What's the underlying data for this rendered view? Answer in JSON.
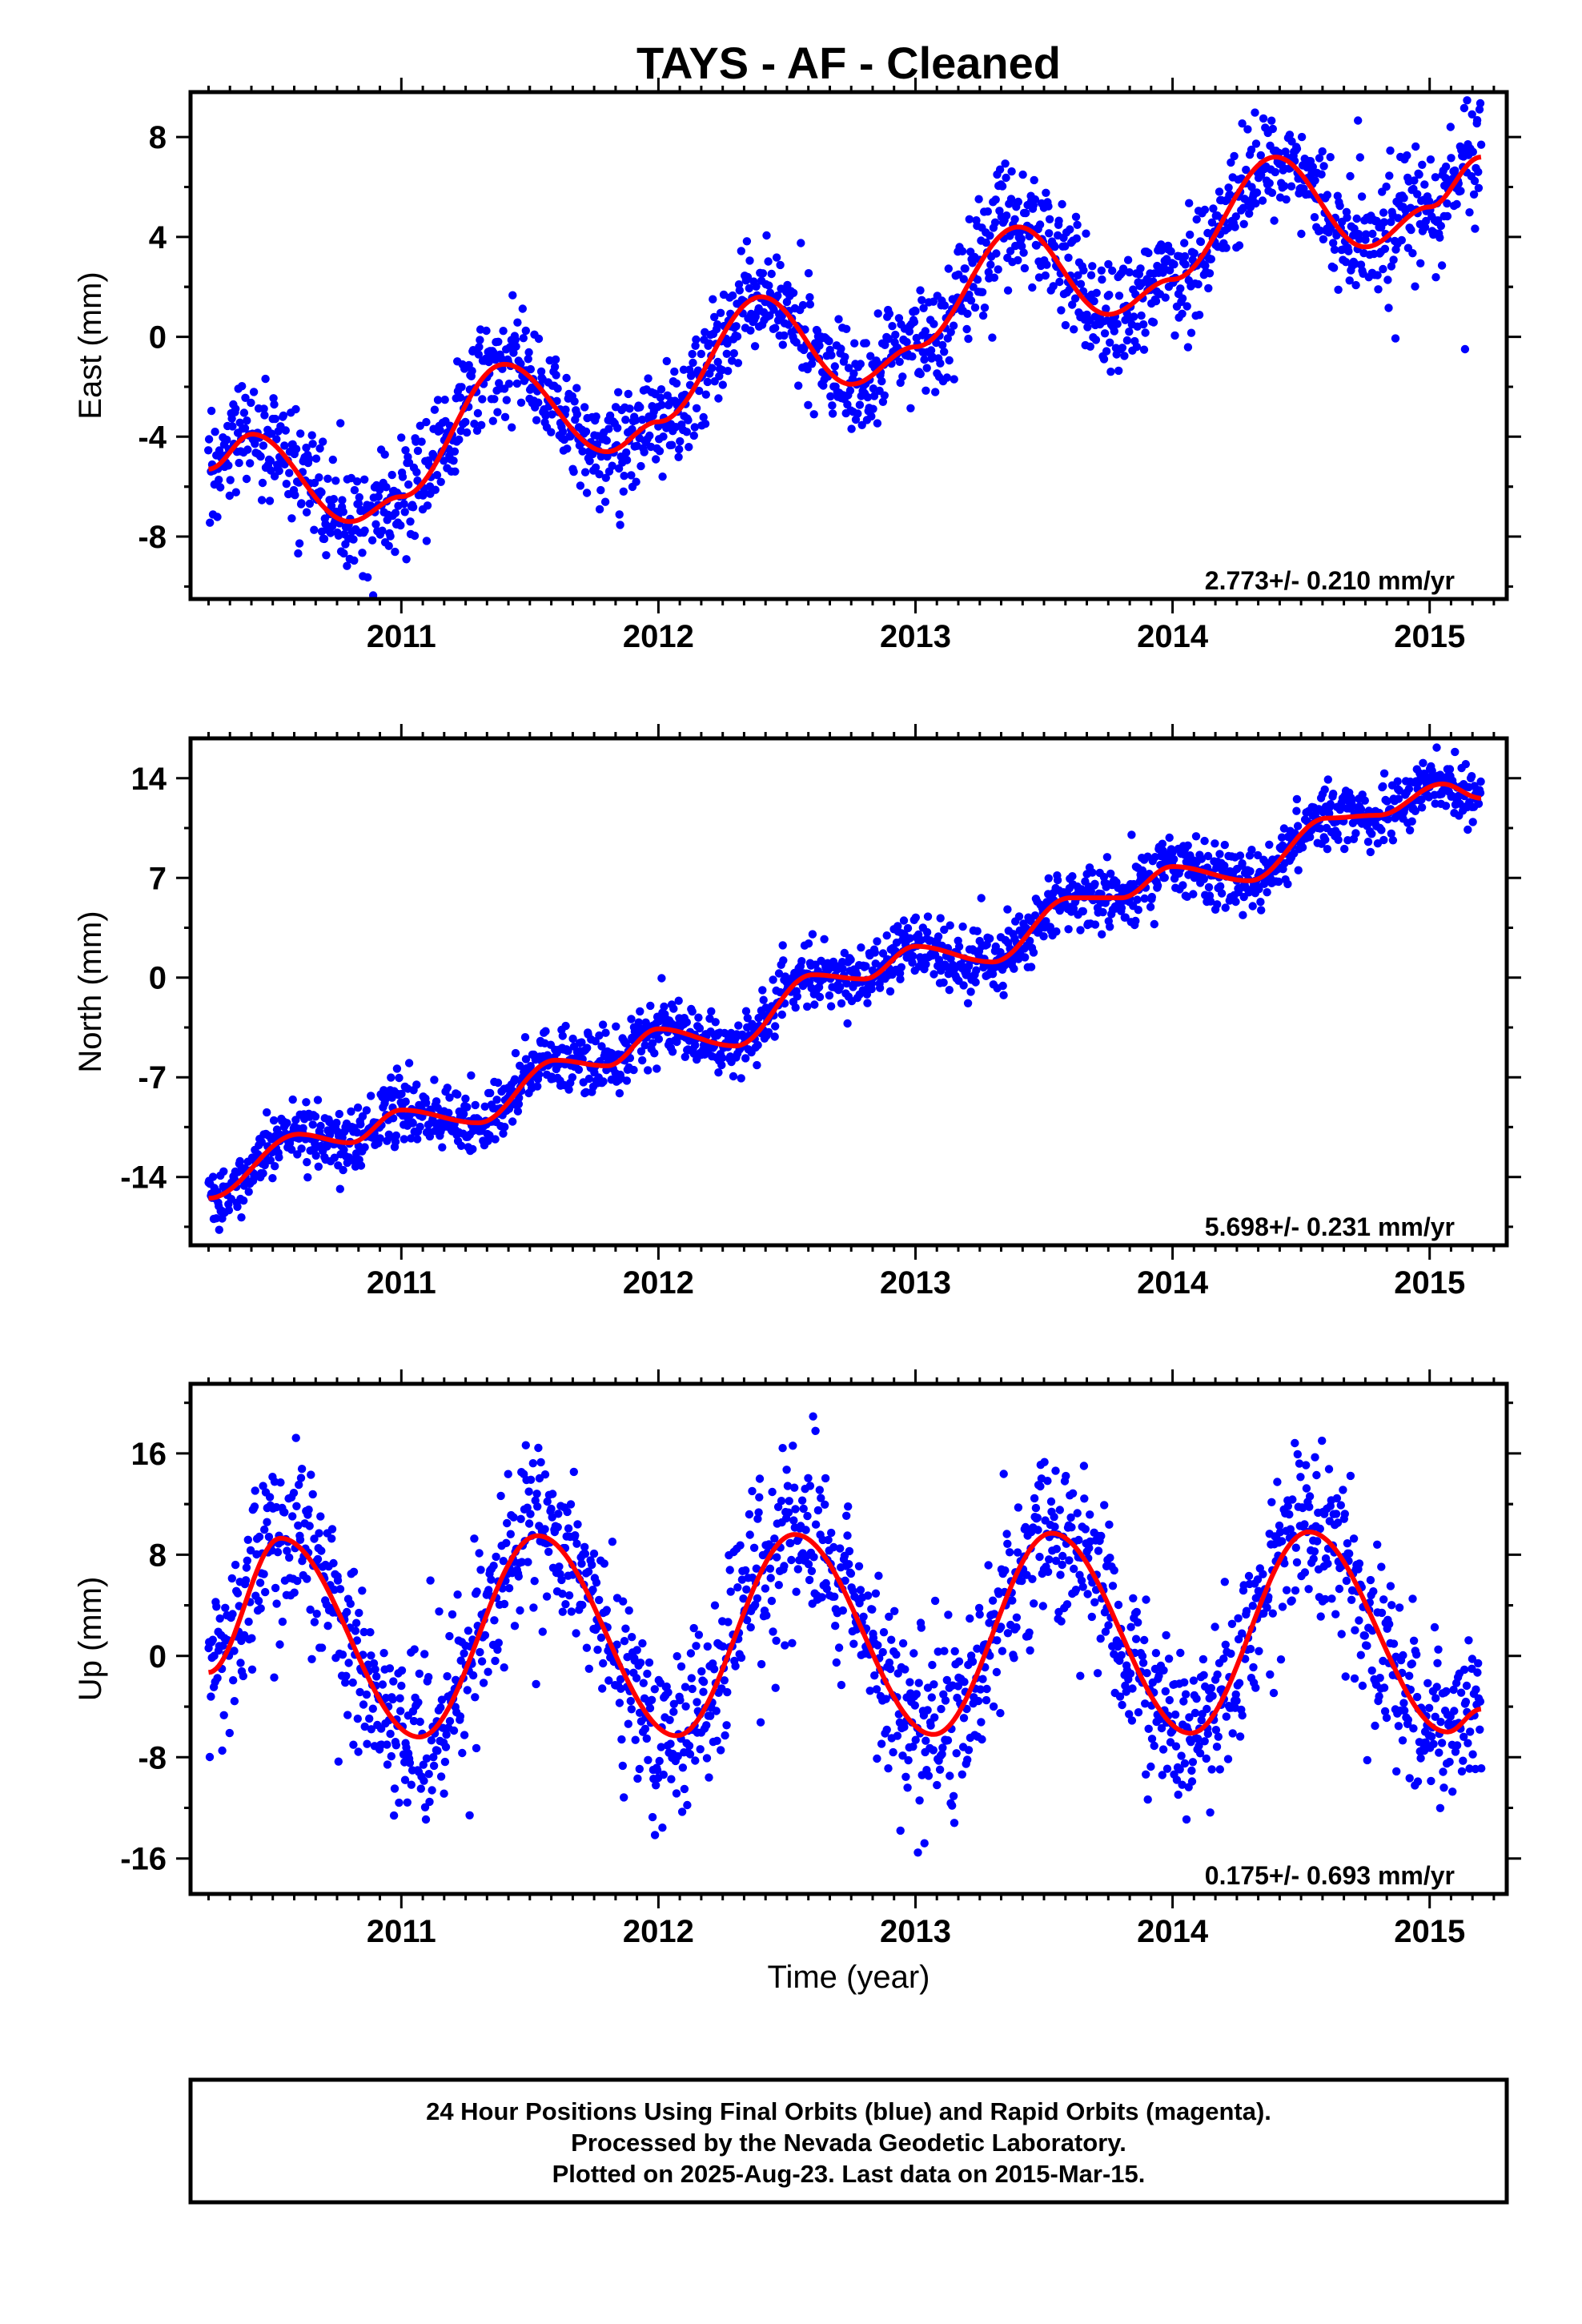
{
  "title": "TAYS  - AF - Cleaned",
  "colors": {
    "points": "#0000ff",
    "fit": "#ff0000",
    "frame": "#000000"
  },
  "x_axis": {
    "label": "Time (year)",
    "range": [
      2010.18,
      2015.3
    ],
    "ticks": [
      2011,
      2012,
      2013,
      2014,
      2015
    ]
  },
  "chart_data": [
    {
      "type": "scatter",
      "name": "East",
      "ylabel": "East (mm)",
      "ylim": [
        -10.5,
        9.8
      ],
      "yticks": [
        -8,
        -4,
        0,
        4,
        8
      ],
      "yticklabels": [
        "-8",
        "-4",
        "0",
        "4",
        "8"
      ],
      "rate": "2.773+/- 0.210 mm/yr",
      "fit": {
        "t0": 2010.25,
        "t1": 2015.2,
        "trend": 2.773,
        "intercept": -5.45,
        "annual_amp": 1.9,
        "annual_peak": 0.4
      },
      "fit_curve": [
        [
          2010.25,
          -5.3
        ],
        [
          2010.42,
          -3.9
        ],
        [
          2010.8,
          -7.4
        ],
        [
          2011.0,
          -6.4
        ],
        [
          2011.4,
          -1.1
        ],
        [
          2011.8,
          -4.6
        ],
        [
          2012.0,
          -3.4
        ],
        [
          2012.4,
          1.6
        ],
        [
          2012.75,
          -1.9
        ],
        [
          2013.0,
          -0.4
        ],
        [
          2013.4,
          4.4
        ],
        [
          2013.75,
          0.9
        ],
        [
          2014.0,
          2.3
        ],
        [
          2014.4,
          7.2
        ],
        [
          2014.75,
          3.6
        ],
        [
          2015.0,
          5.2
        ],
        [
          2015.2,
          7.2
        ]
      ],
      "scatter": {
        "count": 1750,
        "noise": 1.1
      }
    },
    {
      "type": "scatter",
      "name": "North",
      "ylabel": "North (mm)",
      "ylim": [
        -18.8,
        16.8
      ],
      "yticks": [
        -14,
        -7,
        0,
        7,
        14
      ],
      "yticklabels": [
        "-14",
        "-7",
        "0",
        "7",
        "14"
      ],
      "rate": "5.698+/- 0.231 mm/yr",
      "fit": {
        "t0": 2010.25,
        "t1": 2015.2,
        "trend": 5.698,
        "intercept": -14.9,
        "annual_amp": 1.0,
        "annual_peak": 0.05
      },
      "fit_curve": [
        [
          2010.25,
          -15.5
        ],
        [
          2010.6,
          -11.0
        ],
        [
          2010.8,
          -11.6
        ],
        [
          2011.0,
          -9.3
        ],
        [
          2011.3,
          -10.2
        ],
        [
          2011.6,
          -5.8
        ],
        [
          2011.8,
          -6.2
        ],
        [
          2012.0,
          -3.6
        ],
        [
          2012.3,
          -4.8
        ],
        [
          2012.6,
          0.2
        ],
        [
          2012.8,
          -0.1
        ],
        [
          2013.0,
          2.2
        ],
        [
          2013.3,
          1.1
        ],
        [
          2013.6,
          5.6
        ],
        [
          2013.8,
          5.6
        ],
        [
          2014.0,
          7.8
        ],
        [
          2014.3,
          6.8
        ],
        [
          2014.6,
          11.2
        ],
        [
          2014.8,
          11.4
        ],
        [
          2015.05,
          13.6
        ],
        [
          2015.2,
          12.6
        ]
      ],
      "scatter": {
        "count": 1750,
        "noise": 1.1
      }
    },
    {
      "type": "scatter",
      "name": "Up",
      "ylabel": "Up (mm)",
      "ylim": [
        -18.8,
        21.5
      ],
      "yticks": [
        -16,
        -8,
        0,
        8,
        16
      ],
      "yticklabels": [
        "-16",
        "-8",
        "0",
        "8",
        "16"
      ],
      "rate": "0.175+/- 0.693 mm/yr",
      "fit": {
        "t0": 2010.25,
        "t1": 2015.2,
        "trend": 0.175,
        "intercept": 1.5,
        "annual_amp": 8.0,
        "annual_peak": 0.53
      },
      "fit_curve": [
        [
          2010.25,
          -1.3
        ],
        [
          2010.53,
          9.3
        ],
        [
          2011.07,
          -6.4
        ],
        [
          2011.53,
          9.5
        ],
        [
          2012.07,
          -6.3
        ],
        [
          2012.53,
          9.6
        ],
        [
          2013.07,
          -6.2
        ],
        [
          2013.53,
          9.7
        ],
        [
          2014.07,
          -6.1
        ],
        [
          2014.53,
          9.8
        ],
        [
          2015.07,
          -6.0
        ],
        [
          2015.2,
          -4.2
        ]
      ],
      "scatter": {
        "count": 1750,
        "noise": 3.4
      }
    }
  ],
  "footer": {
    "lines": [
      "24 Hour Positions Using Final Orbits (blue) and Rapid Orbits (magenta).",
      "Processed by the Nevada Geodetic Laboratory.",
      "Plotted on 2025-Aug-23. Last data on 2015-Mar-15."
    ]
  }
}
